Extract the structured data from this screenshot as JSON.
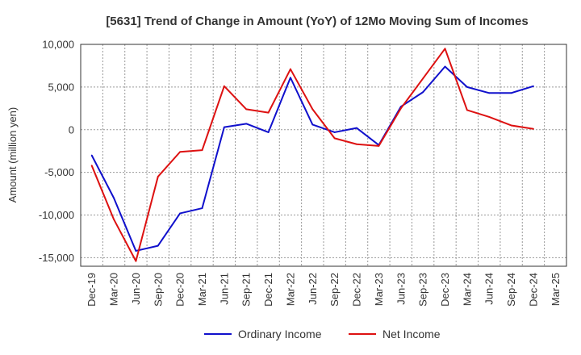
{
  "chart_data": {
    "type": "line",
    "title": "[5631]  Trend of Change in Amount (YoY) of 12Mo Moving Sum of Incomes",
    "xlabel": "",
    "ylabel": "Amount (million yen)",
    "ylim": [
      -16000,
      10000
    ],
    "yticks": [
      10000,
      5000,
      0,
      -5000,
      -10000,
      -15000
    ],
    "ytick_labels": [
      "10,000",
      "5,000",
      "0",
      "-5,000",
      "-10,000",
      "-15,000"
    ],
    "categories": [
      "Dec-19",
      "Mar-20",
      "Jun-20",
      "Sep-20",
      "Dec-20",
      "Mar-21",
      "Jun-21",
      "Sep-21",
      "Dec-21",
      "Mar-22",
      "Jun-22",
      "Sep-22",
      "Dec-22",
      "Mar-23",
      "Jun-23",
      "Sep-23",
      "Dec-23",
      "Mar-24",
      "Jun-24",
      "Sep-24",
      "Dec-24",
      "Mar-25"
    ],
    "grid": true,
    "legend_position": "bottom",
    "series": [
      {
        "name": "Ordinary Income",
        "color": "#1010cc",
        "values": [
          -3000,
          -8000,
          -14200,
          -13600,
          -9800,
          -9200,
          300,
          700,
          -300,
          6100,
          600,
          -300,
          200,
          -1800,
          2700,
          4400,
          7400,
          5000,
          4300,
          4300,
          5100,
          null
        ]
      },
      {
        "name": "Net Income",
        "color": "#dd1111",
        "values": [
          -4200,
          -10500,
          -15400,
          -5500,
          -2600,
          -2400,
          5100,
          2400,
          2000,
          7100,
          2400,
          -1000,
          -1700,
          -1900,
          2500,
          6000,
          9500,
          2300,
          1500,
          500,
          100,
          null
        ]
      }
    ]
  }
}
